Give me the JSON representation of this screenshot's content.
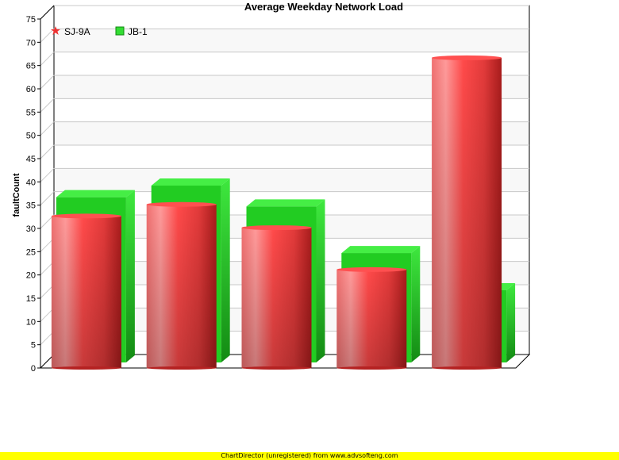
{
  "chart_data": {
    "type": "bar",
    "style": "3d-cylinder-bars",
    "title": "Average Weekday Network Load",
    "xlabel": "",
    "ylabel": "faultCount",
    "ylim": [
      0,
      75
    ],
    "yticks": [
      0,
      5,
      10,
      15,
      20,
      25,
      30,
      35,
      40,
      45,
      50,
      55,
      60,
      65,
      70,
      75
    ],
    "categories": [
      "",
      "",
      "",
      "",
      ""
    ],
    "grid": true,
    "legend_position": "top-left",
    "series": [
      {
        "name": "SJ-9A",
        "values": [
          33,
          35.5,
          30.5,
          21.5,
          67
        ],
        "color": "#ee3333"
      },
      {
        "name": "JB-1",
        "values": [
          35,
          37.5,
          33,
          23,
          15
        ],
        "color": "#22cc22"
      }
    ]
  },
  "footer": {
    "text": "ChartDirector (unregistered) from www.advsofteng.com"
  },
  "colors": {
    "background_band": "#f8f8f8",
    "footer_bg": "#ffff00",
    "series_a": "#ee3333",
    "series_b": "#22cc22"
  }
}
